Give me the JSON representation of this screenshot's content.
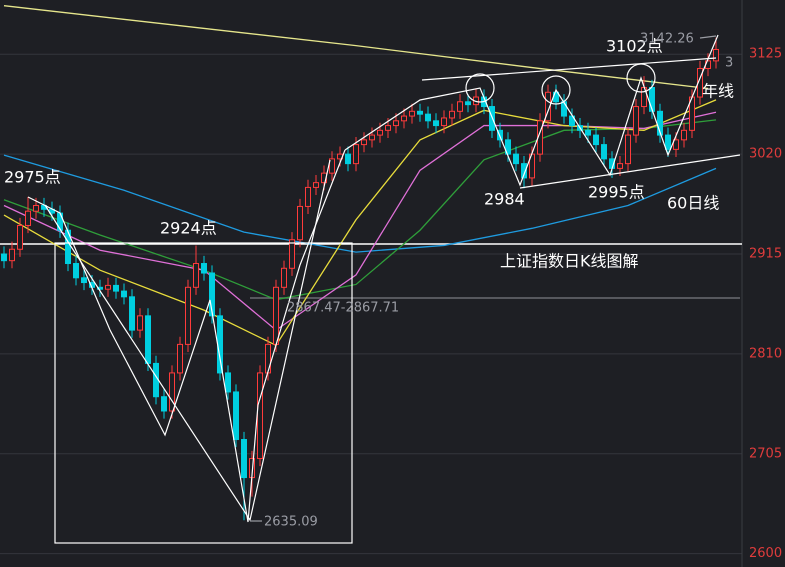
{
  "chart_data": {
    "type": "candlestick",
    "title": "上证指数日K线图解",
    "ylim": [
      2586,
      3182
    ],
    "yticks": [
      3125,
      3020,
      2915,
      2810,
      2705,
      2600
    ],
    "grid": true,
    "up_color": "#ff3b3b",
    "down_color": "#00cfe0",
    "open": [
      2915,
      2908,
      2920,
      2945,
      2960,
      2966,
      2962,
      2958,
      2940,
      2905,
      2890,
      2885,
      2880,
      2878,
      2882,
      2876,
      2870,
      2835,
      2850,
      2800,
      2765,
      2750,
      2790,
      2820,
      2880,
      2905,
      2895,
      2850,
      2790,
      2770,
      2720,
      2680,
      2700,
      2790,
      2820,
      2880,
      2900,
      2930,
      2965,
      2985,
      2990,
      3000,
      3015,
      3020,
      3010,
      3030,
      3035,
      3040,
      3045,
      3050,
      3055,
      3060,
      3065,
      3062,
      3055,
      3050,
      3058,
      3065,
      3075,
      3072,
      3080,
      3070,
      3045,
      3035,
      3020,
      3010,
      2995,
      3020,
      3055,
      3085,
      3075,
      3060,
      3050,
      3045,
      3040,
      3030,
      3015,
      3005,
      3010,
      3040,
      3070,
      3090,
      3065,
      3040,
      3025,
      3035,
      3045,
      3080,
      3110,
      3118
    ],
    "high": [
      2923,
      2928,
      2953,
      2975,
      2974,
      2974,
      2970,
      2966,
      2948,
      2913,
      2898,
      2893,
      2888,
      2890,
      2890,
      2884,
      2878,
      2858,
      2858,
      2808,
      2773,
      2798,
      2828,
      2888,
      2924,
      2913,
      2903,
      2858,
      2798,
      2778,
      2728,
      2708,
      2798,
      2828,
      2888,
      2908,
      2938,
      2973,
      2993,
      2998,
      3008,
      3023,
      3028,
      3028,
      3038,
      3043,
      3048,
      3053,
      3058,
      3063,
      3068,
      3073,
      3073,
      3070,
      3063,
      3066,
      3073,
      3083,
      3083,
      3088,
      3088,
      3078,
      3053,
      3043,
      3028,
      3018,
      3028,
      3063,
      3093,
      3093,
      3083,
      3068,
      3058,
      3053,
      3048,
      3038,
      3023,
      3018,
      3048,
      3078,
      3102,
      3098,
      3073,
      3048,
      3043,
      3053,
      3088,
      3118,
      3126,
      3142.26
    ],
    "low": [
      2900,
      2900,
      2912,
      2937,
      2952,
      2954,
      2950,
      2932,
      2897,
      2882,
      2877,
      2872,
      2870,
      2870,
      2868,
      2862,
      2827,
      2827,
      2792,
      2757,
      2742,
      2742,
      2782,
      2812,
      2872,
      2887,
      2842,
      2782,
      2762,
      2712,
      2635.09,
      2660,
      2692,
      2782,
      2812,
      2872,
      2892,
      2922,
      2957,
      2977,
      2982,
      2992,
      3007,
      3002,
      3002,
      3022,
      3027,
      3032,
      3037,
      3042,
      3047,
      3052,
      3054,
      3047,
      3042,
      3042,
      3050,
      3057,
      3064,
      3064,
      3062,
      3037,
      3027,
      3012,
      3002,
      2984,
      2987,
      3012,
      3047,
      3067,
      3052,
      3042,
      3037,
      3032,
      3022,
      3007,
      2995,
      2997,
      3002,
      3032,
      3062,
      3057,
      3032,
      3017,
      3017,
      3027,
      3037,
      3072,
      3102,
      3110
    ],
    "close": [
      2908,
      2920,
      2945,
      2960,
      2966,
      2962,
      2958,
      2940,
      2905,
      2890,
      2885,
      2880,
      2878,
      2882,
      2876,
      2870,
      2835,
      2850,
      2800,
      2765,
      2750,
      2790,
      2820,
      2880,
      2905,
      2895,
      2850,
      2790,
      2770,
      2720,
      2680,
      2700,
      2790,
      2820,
      2880,
      2900,
      2930,
      2965,
      2985,
      2990,
      3000,
      3015,
      3020,
      3010,
      3030,
      3035,
      3040,
      3045,
      3050,
      3055,
      3060,
      3065,
      3062,
      3055,
      3050,
      3058,
      3065,
      3075,
      3072,
      3080,
      3070,
      3045,
      3035,
      3020,
      3010,
      2995,
      3020,
      3055,
      3085,
      3075,
      3060,
      3050,
      3045,
      3040,
      3030,
      3015,
      3005,
      3010,
      3040,
      3070,
      3090,
      3065,
      3040,
      3025,
      3035,
      3045,
      3080,
      3110,
      3118,
      3130
    ],
    "lines": [
      {
        "name": "年线",
        "color": "#e6e68c",
        "x": [
          0,
          22,
          44,
          66,
          88
        ],
        "values": [
          3176,
          3155,
          3134,
          3111,
          3089
        ]
      },
      {
        "name": "60日线",
        "color": "#1e9be0",
        "x": [
          0,
          15,
          30,
          44,
          55,
          66,
          78,
          89
        ],
        "values": [
          3019,
          2982,
          2938,
          2917,
          2924,
          2942,
          2966,
          3005
        ]
      },
      {
        "color": "#2f9e3a",
        "x": [
          0,
          12,
          25,
          34,
          44,
          52,
          60,
          70,
          80,
          89
        ],
        "values": [
          2972,
          2935,
          2898,
          2867,
          2883,
          2940,
          3014,
          3045,
          3047,
          3056
        ]
      },
      {
        "color": "#e070d8",
        "x": [
          0,
          12,
          25,
          34,
          44,
          52,
          60,
          70,
          80,
          89
        ],
        "values": [
          2966,
          2919,
          2898,
          2835,
          2893,
          3003,
          3050,
          3050,
          3047,
          3064
        ]
      },
      {
        "color": "#e8dc3c",
        "x": [
          0,
          12,
          25,
          34,
          44,
          52,
          60,
          70,
          80,
          89
        ],
        "values": [
          2956,
          2898,
          2856,
          2819,
          2951,
          3035,
          3066,
          3050,
          3045,
          3077
        ]
      }
    ],
    "annotations": [
      "2975点",
      "2924点",
      "2984",
      "2995点",
      "3102点",
      "2867.47-2867.71",
      "3"
    ]
  }
}
